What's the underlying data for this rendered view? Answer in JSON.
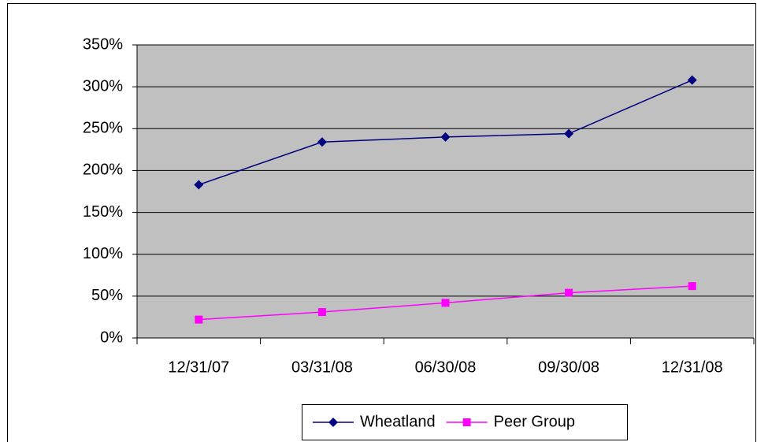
{
  "chart_data": {
    "type": "line",
    "categories": [
      "12/31/07",
      "03/31/08",
      "06/30/08",
      "09/30/08",
      "12/31/08"
    ],
    "series": [
      {
        "name": "Wheatland",
        "color": "#000080",
        "marker": "diamond",
        "values": [
          183,
          234,
          240,
          244,
          308
        ]
      },
      {
        "name": "Peer Group",
        "color": "#ff00ff",
        "marker": "square",
        "values": [
          22,
          31,
          42,
          54,
          62
        ]
      }
    ],
    "ylim": [
      0,
      350
    ],
    "yticks": [
      {
        "value": 0,
        "label": "0%"
      },
      {
        "value": 50,
        "label": "50%"
      },
      {
        "value": 100,
        "label": "100%"
      },
      {
        "value": 150,
        "label": "150%"
      },
      {
        "value": 200,
        "label": "200%"
      },
      {
        "value": 250,
        "label": "250%"
      },
      {
        "value": 300,
        "label": "300%"
      },
      {
        "value": 350,
        "label": "350%"
      }
    ],
    "grid": true,
    "plot_background": "#c0c0c0",
    "legend": "bottom"
  }
}
